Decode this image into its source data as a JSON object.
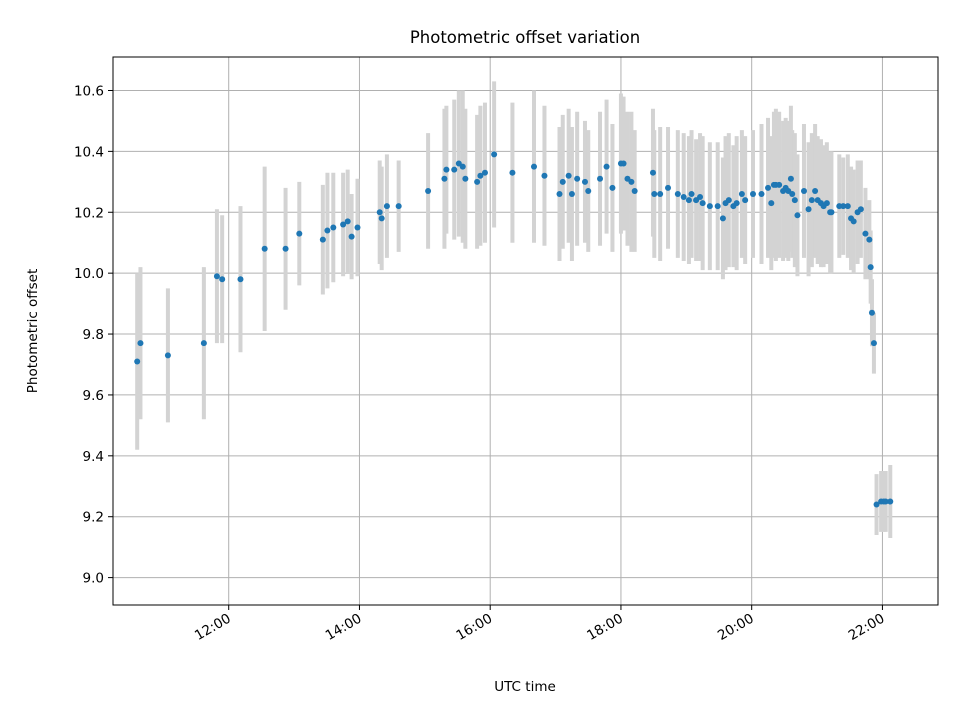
{
  "chart_data": {
    "type": "scatter",
    "title": "Photometric offset variation",
    "xlabel": "UTC time",
    "ylabel": "Photometric offset",
    "x_unit": "hours UTC",
    "xlim": [
      10.23,
      22.85
    ],
    "ylim": [
      8.91,
      10.71
    ],
    "x_ticks": [
      "12:00",
      "14:00",
      "16:00",
      "18:00",
      "20:00",
      "22:00"
    ],
    "y_ticks": [
      "9.0",
      "9.2",
      "9.4",
      "9.6",
      "9.8",
      "10.0",
      "10.2",
      "10.4",
      "10.6"
    ],
    "grid": true,
    "colors": {
      "point": "#1f77b4",
      "errorbar": "#d3d3d3",
      "grid": "#b0b0b0"
    },
    "series": [
      {
        "x": [
          10.6,
          10.65,
          11.07,
          11.62,
          11.82,
          11.9,
          12.18,
          12.55,
          12.87,
          13.08,
          13.44,
          13.51,
          13.6,
          13.75,
          13.82,
          13.88,
          13.97,
          14.31,
          14.34,
          14.42,
          14.6,
          15.05,
          15.3,
          15.33,
          15.45,
          15.52,
          15.58,
          15.62,
          15.8,
          15.85,
          15.92,
          16.06,
          16.34,
          16.67,
          16.83,
          17.06,
          17.11,
          17.2,
          17.25,
          17.33,
          17.45,
          17.5,
          17.68,
          17.78,
          17.87,
          18.0,
          18.04,
          18.1,
          18.16,
          18.21,
          18.49,
          18.51,
          18.6,
          18.72,
          18.87,
          18.96,
          19.04,
          19.08,
          19.15,
          19.21,
          19.25,
          19.36,
          19.48,
          19.56,
          19.6,
          19.65,
          19.72,
          19.77,
          19.85,
          19.9,
          20.02,
          20.15,
          20.25,
          20.3,
          20.34,
          20.37,
          20.42,
          20.48,
          20.52,
          20.56,
          20.6,
          20.62,
          20.66,
          20.7,
          20.8,
          20.87,
          20.92,
          20.97,
          21.01,
          21.06,
          21.1,
          21.15,
          21.2,
          21.22,
          21.34,
          21.4,
          21.47,
          21.52,
          21.56,
          21.62,
          21.67,
          21.74,
          21.8,
          21.82,
          21.84,
          21.87,
          21.91,
          21.98,
          22.02,
          22.05,
          22.12
        ],
        "y": [
          9.71,
          9.77,
          9.73,
          9.77,
          9.99,
          9.98,
          9.98,
          10.08,
          10.08,
          10.13,
          10.11,
          10.14,
          10.15,
          10.16,
          10.17,
          10.12,
          10.15,
          10.2,
          10.18,
          10.22,
          10.22,
          10.27,
          10.31,
          10.34,
          10.34,
          10.36,
          10.35,
          10.31,
          10.3,
          10.32,
          10.33,
          10.39,
          10.33,
          10.35,
          10.32,
          10.26,
          10.3,
          10.32,
          10.26,
          10.31,
          10.3,
          10.27,
          10.31,
          10.35,
          10.28,
          10.36,
          10.36,
          10.31,
          10.3,
          10.27,
          10.33,
          10.26,
          10.26,
          10.28,
          10.26,
          10.25,
          10.24,
          10.26,
          10.24,
          10.25,
          10.23,
          10.22,
          10.22,
          10.18,
          10.23,
          10.24,
          10.22,
          10.23,
          10.26,
          10.24,
          10.26,
          10.26,
          10.28,
          10.23,
          10.29,
          10.29,
          10.29,
          10.27,
          10.28,
          10.27,
          10.31,
          10.26,
          10.24,
          10.19,
          10.27,
          10.21,
          10.24,
          10.27,
          10.24,
          10.23,
          10.22,
          10.23,
          10.2,
          10.2,
          10.22,
          10.22,
          10.22,
          10.18,
          10.17,
          10.2,
          10.21,
          10.13,
          10.11,
          10.02,
          9.87,
          9.77,
          9.24,
          9.25,
          9.25,
          9.25,
          9.25
        ],
        "yerr": [
          0.29,
          0.25,
          0.22,
          0.25,
          0.22,
          0.21,
          0.24,
          0.27,
          0.2,
          0.17,
          0.18,
          0.19,
          0.18,
          0.17,
          0.17,
          0.14,
          0.16,
          0.17,
          0.17,
          0.17,
          0.15,
          0.19,
          0.23,
          0.21,
          0.23,
          0.24,
          0.25,
          0.23,
          0.22,
          0.23,
          0.23,
          0.24,
          0.23,
          0.25,
          0.23,
          0.22,
          0.22,
          0.22,
          0.22,
          0.22,
          0.2,
          0.2,
          0.22,
          0.22,
          0.21,
          0.23,
          0.22,
          0.22,
          0.23,
          0.2,
          0.21,
          0.21,
          0.22,
          0.2,
          0.21,
          0.21,
          0.21,
          0.21,
          0.2,
          0.21,
          0.22,
          0.21,
          0.21,
          0.2,
          0.22,
          0.22,
          0.2,
          0.22,
          0.21,
          0.21,
          0.21,
          0.23,
          0.23,
          0.22,
          0.24,
          0.25,
          0.24,
          0.23,
          0.23,
          0.23,
          0.24,
          0.21,
          0.22,
          0.2,
          0.22,
          0.22,
          0.22,
          0.22,
          0.21,
          0.21,
          0.2,
          0.2,
          0.2,
          0.2,
          0.17,
          0.16,
          0.17,
          0.17,
          0.17,
          0.17,
          0.16,
          0.15,
          0.13,
          0.12,
          0.11,
          0.1,
          0.1,
          0.1,
          0.1,
          0.1,
          0.12
        ]
      }
    ]
  }
}
